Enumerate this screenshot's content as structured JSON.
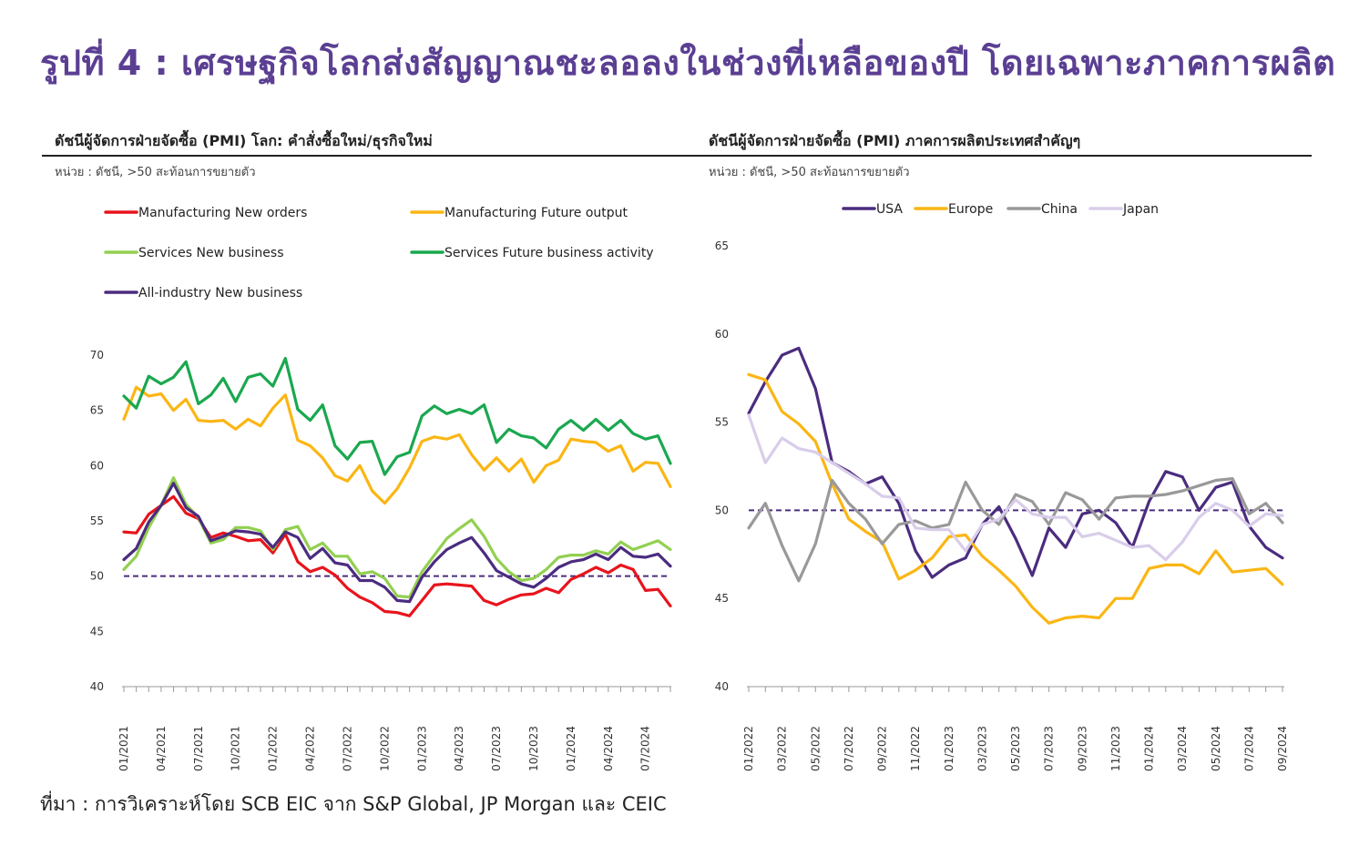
{
  "title": "รูปที่ 4 : เศรษฐกิจโลกส่งสัญญาณชะลอลงในช่วงที่เหลือของปี โดยเฉพาะภาคการผลิต",
  "source": "ที่มา : การวิเคราะห์โดย SCB EIC จาก S&P Global, JP Morgan และ CEIC",
  "colors": {
    "title": "#5b3f93",
    "mfg_new_orders": "#e8141c",
    "mfg_future_output": "#fbb614",
    "services_new_business": "#92d050",
    "services_future_activity": "#1aa84f",
    "all_industry_new_business": "#4b2c7f",
    "usa": "#4b2c7f",
    "europe": "#fbb614",
    "china": "#999999",
    "japan": "#d9cdea",
    "reference_line": "#4b2c7f"
  },
  "chart_data": [
    {
      "type": "line",
      "title": "ดัชนีผู้จัดการฝ่ายจัดซื้อ (PMI) โลก: คำสั่งซื้อใหม่/ธุรกิจใหม่",
      "subtitle": "หน่วย : ดัชนี, >50 สะท้อนการขยายตัว",
      "xlabel": "",
      "ylabel": "",
      "ylim": [
        40,
        70
      ],
      "yticks": [
        "40",
        "45",
        "50",
        "55",
        "60",
        "65",
        "70"
      ],
      "x_tick_labels": [
        "01/2021",
        "04/2021",
        "07/2021",
        "10/2021",
        "01/2022",
        "04/2022",
        "07/2022",
        "10/2022",
        "01/2023",
        "04/2023",
        "07/2023",
        "10/2023",
        "01/2024",
        "04/2024",
        "07/2024"
      ],
      "x": [
        "01/2021",
        "02/2021",
        "03/2021",
        "04/2021",
        "05/2021",
        "06/2021",
        "07/2021",
        "08/2021",
        "09/2021",
        "10/2021",
        "11/2021",
        "12/2021",
        "01/2022",
        "02/2022",
        "03/2022",
        "04/2022",
        "05/2022",
        "06/2022",
        "07/2022",
        "08/2022",
        "09/2022",
        "10/2022",
        "11/2022",
        "12/2022",
        "01/2023",
        "02/2023",
        "03/2023",
        "04/2023",
        "05/2023",
        "06/2023",
        "07/2023",
        "08/2023",
        "09/2023",
        "10/2023",
        "11/2023",
        "12/2023",
        "01/2024",
        "02/2024",
        "03/2024",
        "04/2024",
        "05/2024",
        "06/2024",
        "07/2024",
        "08/2024",
        "09/2024"
      ],
      "reference": 50,
      "grid": false,
      "legend_position": "top",
      "series": [
        {
          "name": "Manufacturing New orders",
          "color_key": "mfg_new_orders",
          "values": [
            54.0,
            53.9,
            55.6,
            56.4,
            57.2,
            55.7,
            55.2,
            53.5,
            53.9,
            53.6,
            53.2,
            53.3,
            52.1,
            53.8,
            51.3,
            50.4,
            50.8,
            50.1,
            48.9,
            48.1,
            47.6,
            46.8,
            46.7,
            46.4,
            47.8,
            49.2,
            49.3,
            49.2,
            49.1,
            47.8,
            47.4,
            47.9,
            48.3,
            48.4,
            48.9,
            48.5,
            49.7,
            50.2,
            50.8,
            50.3,
            51.0,
            50.6,
            48.7,
            48.8,
            47.3
          ]
        },
        {
          "name": "Manufacturing Future output",
          "color_key": "mfg_future_output",
          "values": [
            64.2,
            67.1,
            66.3,
            66.5,
            65.0,
            66.0,
            64.1,
            64.0,
            64.1,
            63.3,
            64.2,
            63.6,
            65.2,
            66.4,
            62.3,
            61.8,
            60.7,
            59.1,
            58.6,
            60.0,
            57.7,
            56.6,
            57.9,
            59.8,
            62.2,
            62.6,
            62.4,
            62.8,
            61.0,
            59.6,
            60.7,
            59.5,
            60.6,
            58.5,
            60.0,
            60.5,
            62.4,
            62.2,
            62.1,
            61.3,
            61.8,
            59.5,
            60.3,
            60.2,
            58.1
          ]
        },
        {
          "name": "Services New business",
          "color_key": "services_new_business",
          "values": [
            50.6,
            51.8,
            54.4,
            56.4,
            58.9,
            56.5,
            55.3,
            53.0,
            53.3,
            54.4,
            54.4,
            54.1,
            52.4,
            54.2,
            54.5,
            52.4,
            53.0,
            51.8,
            51.8,
            50.2,
            50.4,
            49.8,
            48.2,
            48.1,
            50.4,
            51.9,
            53.4,
            54.3,
            55.1,
            53.6,
            51.6,
            50.4,
            49.6,
            49.8,
            50.6,
            51.7,
            51.9,
            51.9,
            52.3,
            52.0,
            53.1,
            52.4,
            52.8,
            53.2,
            52.4
          ]
        },
        {
          "name": "Services Future business activity",
          "color_key": "services_future_activity",
          "values": [
            66.3,
            65.2,
            68.1,
            67.4,
            68.0,
            69.4,
            65.6,
            66.4,
            67.9,
            65.8,
            68.0,
            68.3,
            67.2,
            69.7,
            65.1,
            64.1,
            65.5,
            61.8,
            60.6,
            62.1,
            62.2,
            59.2,
            60.8,
            61.2,
            64.5,
            65.4,
            64.7,
            65.1,
            64.7,
            65.5,
            62.1,
            63.3,
            62.7,
            62.5,
            61.6,
            63.3,
            64.1,
            63.2,
            64.2,
            63.2,
            64.1,
            62.9,
            62.4,
            62.7,
            60.2
          ]
        },
        {
          "name": "All-industry New business",
          "color_key": "all_industry_new_business",
          "values": [
            51.5,
            52.5,
            54.9,
            56.4,
            58.4,
            56.2,
            55.4,
            53.2,
            53.6,
            54.1,
            54.0,
            53.8,
            52.6,
            54.0,
            53.5,
            51.6,
            52.5,
            51.2,
            51.0,
            49.6,
            49.6,
            49.0,
            47.8,
            47.7,
            49.9,
            51.3,
            52.4,
            53.0,
            53.5,
            52.1,
            50.5,
            49.9,
            49.3,
            49.0,
            49.8,
            50.8,
            51.3,
            51.5,
            52.0,
            51.5,
            52.6,
            51.8,
            51.7,
            52.0,
            50.9
          ]
        }
      ]
    },
    {
      "type": "line",
      "title": "ดัชนีผู้จัดการฝ่ายจัดซื้อ (PMI) ภาคการผลิตประเทศสำคัญๆ",
      "subtitle": "หน่วย : ดัชนี, >50 สะท้อนการขยายตัว",
      "xlabel": "",
      "ylabel": "",
      "ylim": [
        40,
        65
      ],
      "yticks": [
        "40",
        "45",
        "50",
        "55",
        "60",
        "65"
      ],
      "x_tick_labels": [
        "01/2022",
        "03/2022",
        "05/2022",
        "07/2022",
        "09/2022",
        "11/2022",
        "01/2023",
        "03/2023",
        "05/2023",
        "07/2023",
        "09/2023",
        "11/2023",
        "01/2024",
        "03/2024",
        "05/2024",
        "07/2024",
        "09/2024"
      ],
      "x": [
        "01/2022",
        "02/2022",
        "03/2022",
        "04/2022",
        "05/2022",
        "06/2022",
        "07/2022",
        "08/2022",
        "09/2022",
        "10/2022",
        "11/2022",
        "12/2022",
        "01/2023",
        "02/2023",
        "03/2023",
        "04/2023",
        "05/2023",
        "06/2023",
        "07/2023",
        "08/2023",
        "09/2023",
        "10/2023",
        "11/2023",
        "12/2023",
        "01/2024",
        "02/2024",
        "03/2024",
        "04/2024",
        "05/2024",
        "06/2024",
        "07/2024",
        "08/2024",
        "09/2024"
      ],
      "reference": 50,
      "grid": false,
      "legend_position": "top",
      "series": [
        {
          "name": "USA",
          "color_key": "usa",
          "values": [
            55.5,
            57.3,
            58.8,
            59.2,
            56.9,
            52.7,
            52.2,
            51.5,
            51.9,
            50.4,
            47.7,
            46.2,
            46.9,
            47.3,
            49.2,
            50.2,
            48.4,
            46.3,
            49.0,
            47.9,
            49.8,
            50.0,
            49.3,
            47.9,
            50.5,
            52.2,
            51.9,
            50.0,
            51.3,
            51.6,
            49.1,
            47.9,
            47.3
          ]
        },
        {
          "name": "Europe",
          "color_key": "europe",
          "values": [
            57.7,
            57.4,
            55.6,
            54.9,
            53.9,
            51.5,
            49.5,
            48.8,
            48.2,
            46.1,
            46.6,
            47.3,
            48.5,
            48.6,
            47.4,
            46.6,
            45.7,
            44.5,
            43.6,
            43.9,
            44.0,
            43.9,
            45.0,
            45.0,
            46.7,
            46.9,
            46.9,
            46.4,
            47.7,
            46.5,
            46.6,
            46.7,
            45.8
          ]
        },
        {
          "name": "China",
          "color_key": "china",
          "values": [
            49.0,
            50.4,
            48.0,
            46.0,
            48.1,
            51.7,
            50.4,
            49.5,
            48.1,
            49.2,
            49.4,
            49.0,
            49.2,
            51.6,
            50.0,
            49.2,
            50.9,
            50.5,
            49.2,
            51.0,
            50.6,
            49.5,
            50.7,
            50.8,
            50.8,
            50.9,
            51.1,
            51.4,
            51.7,
            51.8,
            49.8,
            50.4,
            49.3
          ]
        },
        {
          "name": "Japan",
          "color_key": "japan",
          "values": [
            55.4,
            52.7,
            54.1,
            53.5,
            53.3,
            52.7,
            52.1,
            51.5,
            50.8,
            50.7,
            49.0,
            48.9,
            48.9,
            47.7,
            49.2,
            49.5,
            50.6,
            49.8,
            49.6,
            49.6,
            48.5,
            48.7,
            48.3,
            47.9,
            48.0,
            47.2,
            48.2,
            49.6,
            50.4,
            50.0,
            49.1,
            49.8,
            49.7
          ]
        }
      ]
    }
  ]
}
